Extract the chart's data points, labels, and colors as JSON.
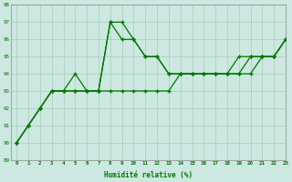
{
  "x": [
    0,
    1,
    2,
    3,
    4,
    5,
    6,
    7,
    8,
    9,
    10,
    11,
    12,
    13,
    14,
    15,
    16,
    17,
    18,
    19,
    20,
    21,
    22,
    23
  ],
  "line1": [
    90,
    91,
    92,
    93,
    93,
    94,
    93,
    93,
    97,
    97,
    96,
    95,
    95,
    94,
    94,
    94,
    94,
    94,
    94,
    94,
    95,
    95,
    95,
    96
  ],
  "line2": [
    90,
    91,
    92,
    93,
    93,
    93,
    93,
    93,
    97,
    96,
    96,
    95,
    95,
    94,
    94,
    94,
    94,
    94,
    94,
    95,
    95,
    95,
    95,
    96
  ],
  "line3": [
    90,
    91,
    92,
    93,
    93,
    93,
    93,
    93,
    93,
    93,
    93,
    93,
    93,
    93,
    94,
    94,
    94,
    94,
    94,
    94,
    94,
    95,
    95,
    96
  ],
  "xlabel": "Humidité relative (%)",
  "ylim": [
    89,
    98
  ],
  "xlim": [
    -0.5,
    23
  ],
  "bg_color": "#cce8e0",
  "line_color": "#007700",
  "marker": "+",
  "grid_color": "#aaccbb",
  "yticks": [
    89,
    90,
    91,
    92,
    93,
    94,
    95,
    96,
    97,
    98
  ],
  "xticks": [
    0,
    1,
    2,
    3,
    4,
    5,
    6,
    7,
    8,
    9,
    10,
    11,
    12,
    13,
    14,
    15,
    16,
    17,
    18,
    19,
    20,
    21,
    22,
    23
  ]
}
